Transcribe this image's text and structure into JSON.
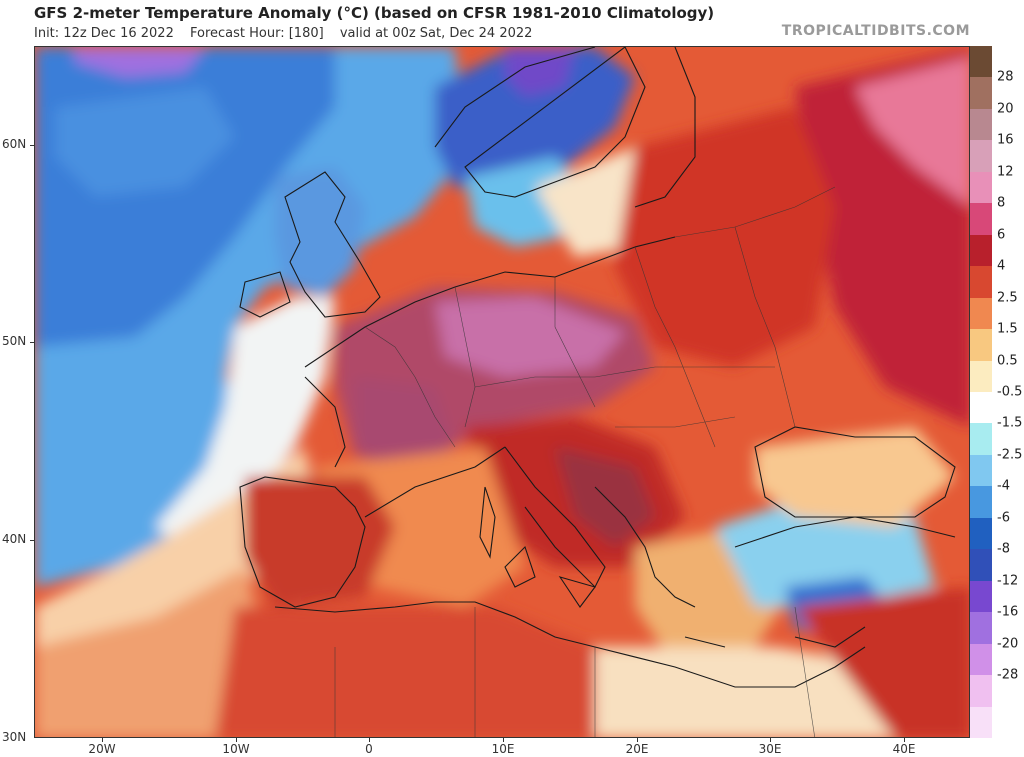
{
  "header": {
    "title": "GFS 2-meter Temperature Anomaly (°C) (based on CFSR 1981-2010 Climatology)",
    "init": "Init: 12z Dec 16 2022",
    "forecast_hour": "Forecast Hour: [180]",
    "valid": "valid at 00z Sat, Dec 24 2022",
    "brand": "TROPICALTIDBITS.COM"
  },
  "map": {
    "region": "Europe and North Africa",
    "lat_labels": [
      "60N",
      "50N",
      "40N",
      "30N"
    ],
    "lon_labels": [
      "20W",
      "10W",
      "0",
      "10E",
      "20E",
      "30E",
      "40E"
    ]
  },
  "colorbar": {
    "labels": [
      "28",
      "20",
      "16",
      "12",
      "8",
      "6",
      "4",
      "2.5",
      "1.5",
      "0.5",
      "-0.5",
      "-1.5",
      "-2.5",
      "-4",
      "-6",
      "-8",
      "-12",
      "-16",
      "-20",
      "-28"
    ],
    "colors": [
      "#6b4a33",
      "#a07060",
      "#b88890",
      "#d8a0b8",
      "#e890b8",
      "#d84878",
      "#b8202c",
      "#d84830",
      "#f08850",
      "#f8c880",
      "#fcecc0",
      "#ffffff",
      "#a8ecf0",
      "#80c8f0",
      "#4898e0",
      "#2060c0",
      "#3050b8",
      "#7848d0",
      "#a070e0",
      "#d090e8",
      "#f0c0f0",
      "#f8e0f8"
    ]
  }
}
